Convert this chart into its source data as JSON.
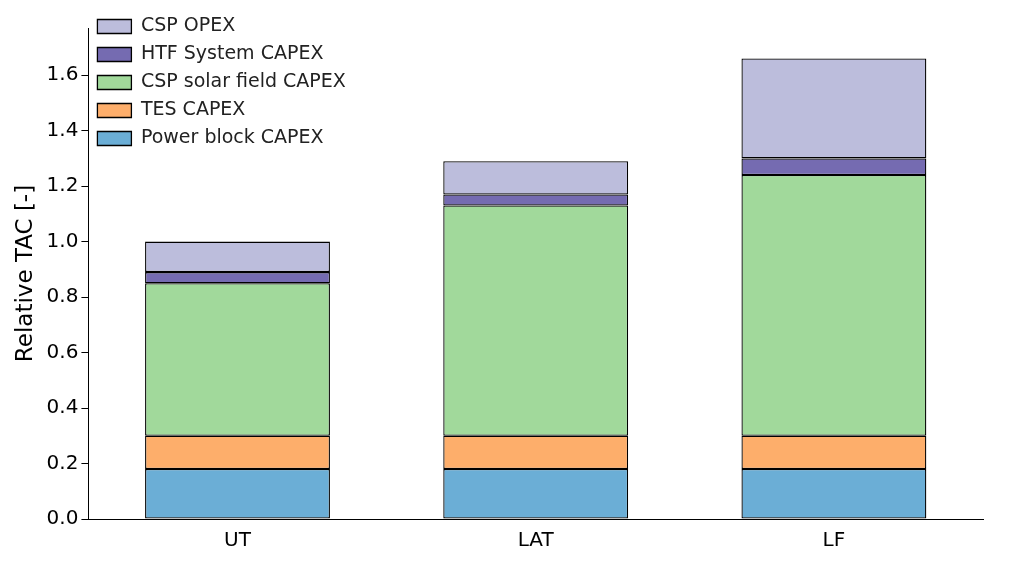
{
  "chart_data": {
    "type": "bar",
    "stacked": true,
    "ylabel": "Relative TAC [-]",
    "categories": [
      "UT",
      "LAT",
      "LF"
    ],
    "series": [
      {
        "name": "Power block CAPEX",
        "color": "#6baed6",
        "values": [
          0.18,
          0.18,
          0.18
        ]
      },
      {
        "name": "TES CAPEX",
        "color": "#fdae6b",
        "values": [
          0.12,
          0.12,
          0.12
        ]
      },
      {
        "name": "CSP solar field CAPEX",
        "color": "#a1d99b",
        "values": [
          0.55,
          0.83,
          0.94
        ]
      },
      {
        "name": "HTF System CAPEX",
        "color": "#756bb1",
        "values": [
          0.04,
          0.04,
          0.06
        ]
      },
      {
        "name": "CSP OPEX",
        "color": "#bcbddc",
        "values": [
          0.11,
          0.12,
          0.36
        ]
      }
    ],
    "ylim": [
      0,
      1.77
    ],
    "yticks": [
      {
        "value": 0,
        "label": "0.0"
      },
      {
        "value": 0.2,
        "label": "0.2"
      },
      {
        "value": 0.4,
        "label": "0.4"
      },
      {
        "value": 0.6,
        "label": "0.6"
      },
      {
        "value": 0.8,
        "label": "0.8"
      },
      {
        "value": 1,
        "label": "1.0"
      },
      {
        "value": 1.2,
        "label": "1.2"
      },
      {
        "value": 1.4,
        "label": "1.4"
      },
      {
        "value": 1.6,
        "label": "1.6"
      }
    ],
    "grid": false,
    "legend": "top left"
  }
}
